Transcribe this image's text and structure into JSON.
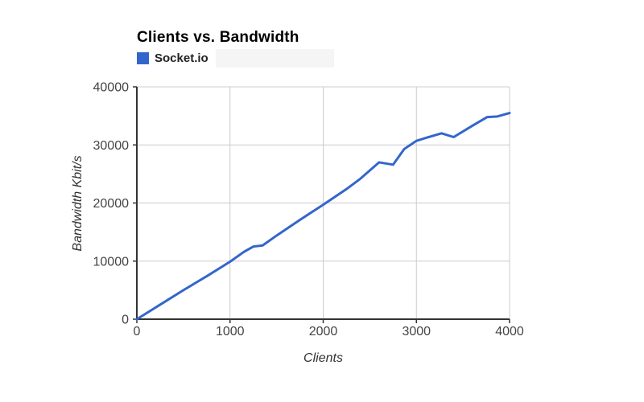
{
  "title": "Clients vs. Bandwidth",
  "legend": {
    "items": [
      {
        "label": "Socket.io",
        "color": "#3366cc"
      }
    ]
  },
  "chart_data": {
    "type": "line",
    "title": "Clients vs. Bandwidth",
    "xlabel": "Clients",
    "ylabel": "Bandwidth Kbit/s",
    "xlim": [
      0,
      4000
    ],
    "ylim": [
      0,
      40000
    ],
    "x_ticks": [
      0,
      1000,
      2000,
      3000,
      4000
    ],
    "y_ticks": [
      0,
      10000,
      20000,
      30000,
      40000
    ],
    "grid": true,
    "legend_position": "top-left",
    "series": [
      {
        "name": "Socket.io",
        "color": "#3366cc",
        "points": [
          [
            0,
            0
          ],
          [
            250,
            2500
          ],
          [
            500,
            5000
          ],
          [
            750,
            7400
          ],
          [
            1000,
            9900
          ],
          [
            1150,
            11600
          ],
          [
            1250,
            12500
          ],
          [
            1350,
            12700
          ],
          [
            1500,
            14400
          ],
          [
            1750,
            17100
          ],
          [
            2000,
            19700
          ],
          [
            2250,
            22400
          ],
          [
            2400,
            24200
          ],
          [
            2600,
            27000
          ],
          [
            2750,
            26600
          ],
          [
            2870,
            29300
          ],
          [
            3000,
            30700
          ],
          [
            3100,
            31200
          ],
          [
            3270,
            32000
          ],
          [
            3400,
            31350
          ],
          [
            3600,
            33300
          ],
          [
            3760,
            34800
          ],
          [
            3870,
            34900
          ],
          [
            4000,
            35500
          ]
        ]
      }
    ],
    "colors": {
      "gridline": "#cccccc",
      "axis": "#333333",
      "tick_label": "#444444",
      "title": "#000000",
      "axis_title": "#333333"
    }
  }
}
